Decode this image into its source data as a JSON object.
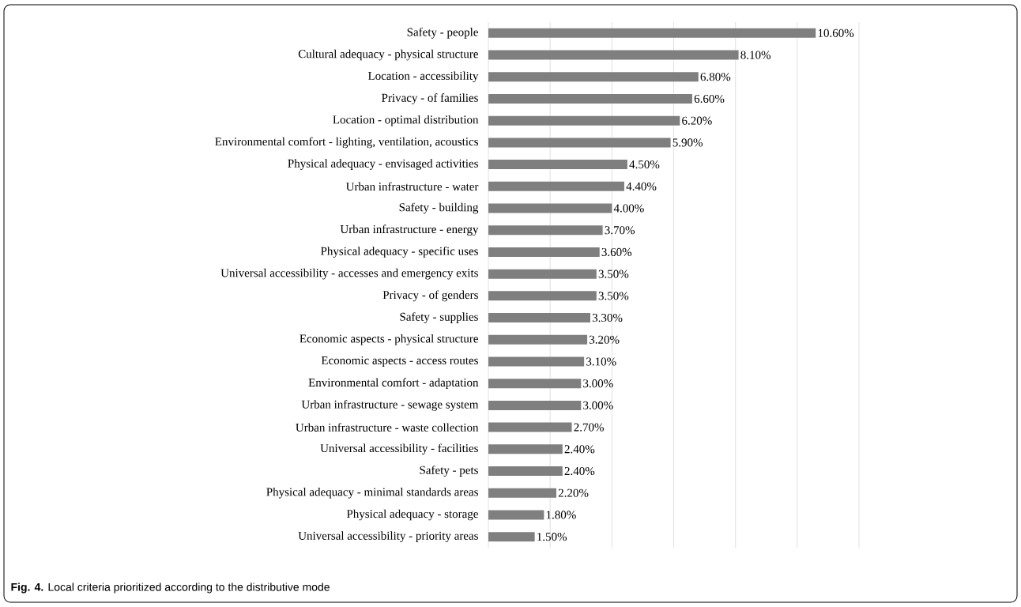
{
  "chart_data": {
    "type": "bar",
    "orientation": "horizontal",
    "title": "**Fig. 4.** Local criteria prioritized according to the distributive mode",
    "categories": [
      "Safety - people",
      "Cultural adequacy - physical structure",
      "Location - accessibility",
      "Privacy - of families",
      "Location - optimal distribution",
      "Environmental comfort - lighting, ventilation, acoustics",
      "Physical adequacy - envisaged activities",
      "Urban infrastructure - water",
      "Safety - building",
      "Urban infrastructure - energy",
      "Physical adequacy - specific uses",
      "Universal accessibility - accesses and emergency exits",
      "Privacy - of genders",
      "Safety - supplies",
      "Economic aspects - physical structure",
      "Economic aspects - access routes",
      "Environmental comfort - adaptation",
      "Urban infrastructure - sewage system",
      "Urban infrastructure - waste collection",
      "Universal accessibility - facilities",
      "Safety - pets",
      "Physical adequacy - minimal standards areas",
      "Physical adequacy - storage",
      "Universal accessibility - priority areas"
    ],
    "values": [
      10.6,
      8.1,
      6.8,
      6.6,
      6.2,
      5.9,
      4.5,
      4.4,
      4.0,
      3.7,
      3.6,
      3.5,
      3.5,
      3.3,
      3.2,
      3.1,
      3.0,
      3.0,
      2.7,
      2.4,
      2.4,
      2.2,
      1.8,
      1.5
    ],
    "value_labels": [
      "10.60%",
      "8.10%",
      "6.80%",
      "6.60%",
      "6.20%",
      "5.90%",
      "4.50%",
      "4.40%",
      "4.00%",
      "3.70%",
      "3.60%",
      "3.50%",
      "3.50%",
      "3.30%",
      "3.20%",
      "3.10%",
      "3.00%",
      "3.00%",
      "2.70%",
      "2.40%",
      "2.40%",
      "2.20%",
      "1.80%",
      "1.50%"
    ],
    "color": "#7f7f7f",
    "xlim": [
      0,
      12
    ],
    "xticks": [
      {
        "value": 0,
        "label": null
      },
      {
        "value": 2,
        "label": null
      },
      {
        "value": 4,
        "label": null
      },
      {
        "value": 6,
        "label": null
      },
      {
        "value": 8,
        "label": null
      },
      {
        "value": 10,
        "label": null
      },
      {
        "value": 12,
        "label": null
      }
    ],
    "grid": "x",
    "tick_labels": "y"
  }
}
